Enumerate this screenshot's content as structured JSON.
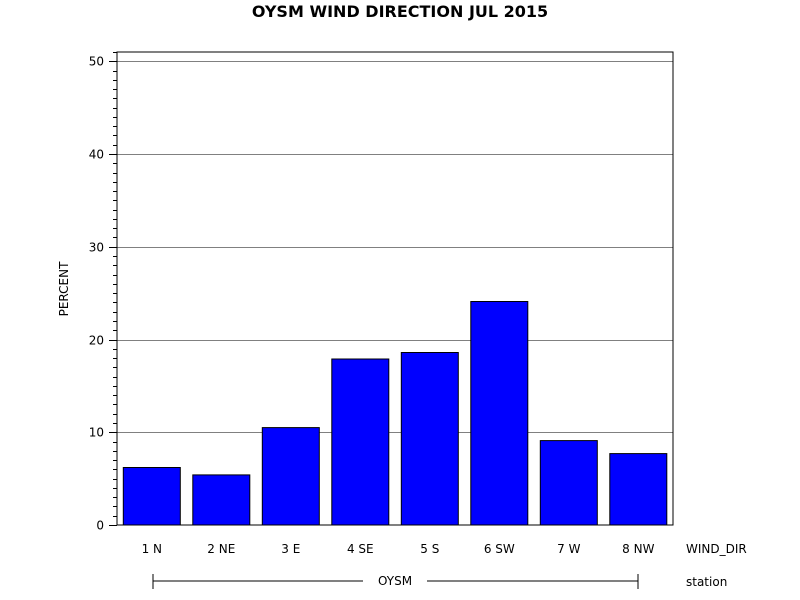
{
  "chart_data": {
    "type": "bar",
    "title": "OYSM WIND DIRECTION JUL 2015",
    "ylabel": "PERCENT",
    "xlabel": "WIND_DIR",
    "group_axis_label": "station",
    "group_name": "OYSM",
    "categories": [
      "1 N",
      "2 NE",
      "3 E",
      "4 SE",
      "5 S",
      "6 SW",
      "7 W",
      "8 NW"
    ],
    "values": [
      6.2,
      5.4,
      10.5,
      17.9,
      18.6,
      24.1,
      9.1,
      7.7
    ],
    "ylim": [
      0,
      51
    ],
    "yticks": [
      0,
      10,
      20,
      30,
      40,
      50
    ],
    "grid": true,
    "bar_color": "#0000FF"
  }
}
